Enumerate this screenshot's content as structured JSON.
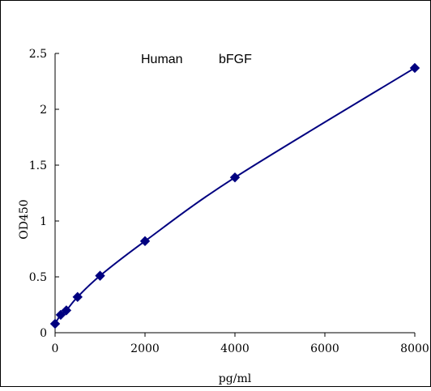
{
  "chart_data": {
    "type": "scatter",
    "title_left": "Human",
    "title_right": "bFGF",
    "xlabel": "pg/ml",
    "ylabel": "OD450",
    "xlim": [
      0,
      8000
    ],
    "ylim": [
      0,
      2.5
    ],
    "x_ticks": [
      "0",
      "2000",
      "4000",
      "6000",
      "8000"
    ],
    "y_ticks": [
      "0",
      "0.5",
      "1",
      "1.5",
      "2",
      "2.5"
    ],
    "x_tick_values": [
      0,
      2000,
      4000,
      6000,
      8000
    ],
    "y_tick_values": [
      0,
      0.5,
      1,
      1.5,
      2,
      2.5
    ],
    "grid": false,
    "fit_curve": true,
    "marker": "diamond",
    "series_color": "#000080",
    "x": [
      0,
      125,
      250,
      500,
      1000,
      2000,
      4000,
      8000
    ],
    "y": [
      0.08,
      0.16,
      0.2,
      0.32,
      0.51,
      0.82,
      1.39,
      2.37
    ]
  }
}
